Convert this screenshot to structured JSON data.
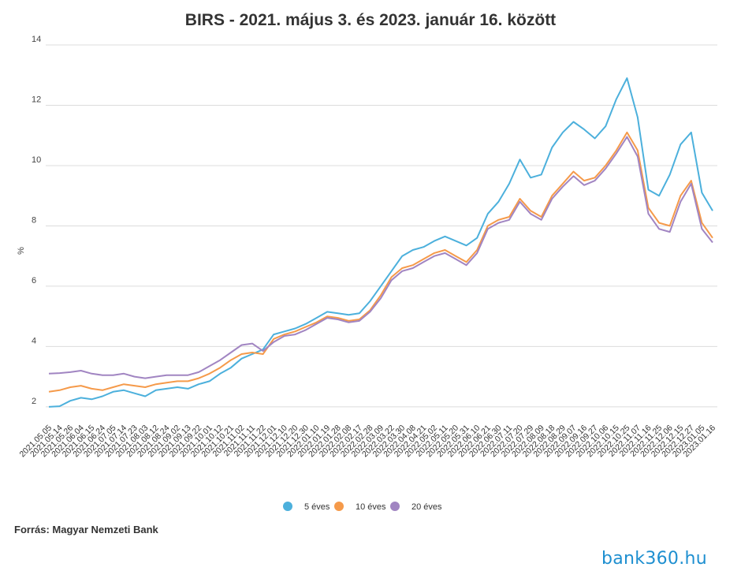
{
  "title": "BIRS - 2021. május 3. és 2023. január 16. között",
  "source": "Forrás: Magyar Nemzeti Bank",
  "logo": "bank360.hu",
  "chart_data": {
    "type": "line",
    "title": "BIRS - 2021. május 3. és 2023. január 16. között",
    "ylabel": "%",
    "xlabel": "",
    "ylim": [
      1.5,
      14
    ],
    "yticks": [
      2,
      4,
      6,
      8,
      10,
      12,
      14
    ],
    "grid": true,
    "legend_position": "bottom",
    "x_tick_labels": [
      "2021.05.05",
      "2021.05.14",
      "2021.05.26",
      "2021.06.04",
      "2021.06.15",
      "2021.06.24",
      "2021.07.05",
      "2021.07.14",
      "2021.07.23",
      "2021.08.03",
      "2021.08.12",
      "2021.08.24",
      "2021.09.02",
      "2021.09.13",
      "2021.09.22",
      "2021.10.01",
      "2021.10.12",
      "2021.10.21",
      "2021.11.02",
      "2021.11.11",
      "2021.11.22",
      "2021.12.01",
      "2021.12.10",
      "2021.12.20",
      "2021.12.30",
      "2022.01.10",
      "2022.01.19",
      "2022.01.28",
      "2022.02.08",
      "2022.02.17",
      "2022.02.28",
      "2022.03.09",
      "2022.03.22",
      "2022.03.30",
      "2022.04.08",
      "2022.04.21",
      "2022.05.02",
      "2022.05.11",
      "2022.05.20",
      "2022.05.31",
      "2022.06.10",
      "2022.06.21",
      "2022.06.30",
      "2022.07.11",
      "2022.07.20",
      "2022.07.29",
      "2022.08.09",
      "2022.08.18",
      "2022.08.29",
      "2022.09.07",
      "2022.09.16",
      "2022.09.27",
      "2022.10.06",
      "2022.10.15",
      "2022.10.25",
      "2022.11.07",
      "2022.11.16",
      "2022.11.25",
      "2022.12.06",
      "2022.12.15",
      "2022.12.27",
      "2023.01.05",
      "2023.01.16"
    ],
    "series": [
      {
        "name": "5 éves",
        "color": "#4cb0dc",
        "values": [
          2.0,
          2.02,
          2.2,
          2.3,
          2.25,
          2.35,
          2.5,
          2.55,
          2.45,
          2.35,
          2.55,
          2.6,
          2.65,
          2.6,
          2.75,
          2.85,
          3.1,
          3.3,
          3.6,
          3.75,
          3.9,
          4.4,
          4.5,
          4.6,
          4.75,
          4.95,
          5.15,
          5.1,
          5.05,
          5.1,
          5.5,
          6.0,
          6.5,
          7.0,
          7.2,
          7.3,
          7.5,
          7.65,
          7.5,
          7.35,
          7.6,
          8.4,
          8.8,
          9.4,
          10.2,
          9.6,
          9.7,
          10.6,
          11.1,
          11.45,
          11.2,
          10.9,
          11.3,
          12.2,
          12.9,
          11.6,
          9.2,
          9.0,
          9.7,
          10.7,
          11.1,
          9.1,
          8.5
        ]
      },
      {
        "name": "10 éves",
        "color": "#f59a4a",
        "values": [
          2.5,
          2.55,
          2.65,
          2.7,
          2.6,
          2.55,
          2.65,
          2.75,
          2.7,
          2.65,
          2.75,
          2.8,
          2.85,
          2.85,
          2.95,
          3.1,
          3.3,
          3.55,
          3.75,
          3.8,
          3.75,
          4.25,
          4.4,
          4.5,
          4.65,
          4.8,
          5.0,
          4.95,
          4.85,
          4.9,
          5.2,
          5.7,
          6.3,
          6.6,
          6.7,
          6.9,
          7.1,
          7.2,
          7.0,
          6.8,
          7.2,
          8.0,
          8.2,
          8.3,
          8.9,
          8.5,
          8.3,
          9.0,
          9.4,
          9.8,
          9.5,
          9.6,
          10.0,
          10.5,
          11.1,
          10.5,
          8.6,
          8.1,
          8.0,
          9.0,
          9.5,
          8.1,
          7.6
        ]
      },
      {
        "name": "20 éves",
        "color": "#a185c2",
        "values": [
          3.1,
          3.12,
          3.15,
          3.2,
          3.1,
          3.05,
          3.05,
          3.1,
          3.0,
          2.95,
          3.0,
          3.05,
          3.05,
          3.05,
          3.15,
          3.35,
          3.55,
          3.8,
          4.05,
          4.1,
          3.85,
          4.15,
          4.35,
          4.4,
          4.55,
          4.75,
          4.95,
          4.9,
          4.8,
          4.85,
          5.15,
          5.6,
          6.2,
          6.5,
          6.6,
          6.8,
          7.0,
          7.1,
          6.9,
          6.7,
          7.1,
          7.9,
          8.1,
          8.2,
          8.8,
          8.4,
          8.2,
          8.9,
          9.3,
          9.65,
          9.35,
          9.5,
          9.9,
          10.4,
          10.95,
          10.3,
          8.4,
          7.9,
          7.8,
          8.8,
          9.4,
          7.9,
          7.45
        ]
      }
    ]
  }
}
